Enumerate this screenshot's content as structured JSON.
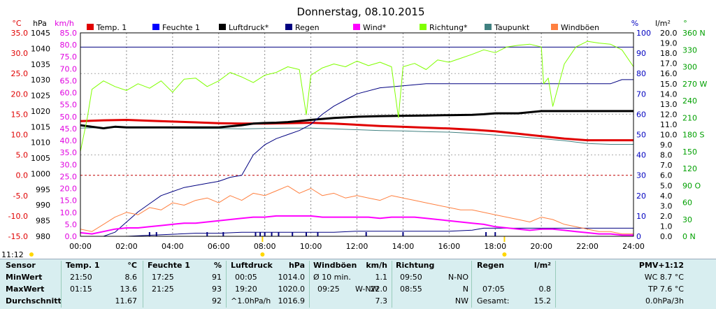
{
  "title": "Donnerstag, 08.10.2015",
  "clock": "11:12",
  "chart_data": {
    "type": "line",
    "x_ticks": [
      "00:00",
      "02:00",
      "04:00",
      "06:00",
      "08:00",
      "10:00",
      "12:00",
      "14:00",
      "16:00",
      "18:00",
      "20:00",
      "22:00",
      "24:00"
    ],
    "axes": {
      "temp": {
        "unit": "°C",
        "color": "#e00000",
        "range": [
          -15,
          35
        ],
        "ticks": [
          "35.0",
          "30.0",
          "25.0",
          "20.0",
          "15.0",
          "10.0",
          "5.0",
          "0.0",
          "-5.0",
          "-10.0",
          "-15.0"
        ]
      },
      "pressure": {
        "unit": "hPa",
        "color": "#000000",
        "range": [
          980,
          1045
        ],
        "ticks": [
          "1045",
          "1040",
          "1035",
          "1030",
          "1025",
          "1020",
          "1015",
          "1010",
          "1005",
          "1000",
          "995",
          "990",
          "985",
          "980"
        ]
      },
      "wind": {
        "unit": "km/h",
        "color": "#e000e0",
        "range": [
          0,
          85
        ],
        "ticks": [
          "85.0",
          "80.0",
          "75.0",
          "70.0",
          "65.0",
          "60.0",
          "55.0",
          "50.0",
          "45.0",
          "40.0",
          "35.0",
          "30.0",
          "25.0",
          "20.0",
          "15.0",
          "10.0",
          "5.0",
          "0.0"
        ]
      },
      "humidity": {
        "unit": "%",
        "color": "#0000c0",
        "range": [
          0,
          100
        ],
        "ticks": [
          "100",
          "90",
          "80",
          "70",
          "60",
          "50",
          "40",
          "30",
          "20",
          "10",
          "0"
        ]
      },
      "rain": {
        "unit": "l/m²",
        "color": "#000000",
        "range": [
          0,
          20
        ],
        "ticks": [
          "20.0",
          "19.0",
          "18.0",
          "17.0",
          "16.0",
          "15.0",
          "14.0",
          "13.0",
          "12.0",
          "11.0",
          "10.0",
          "9.0",
          "8.0",
          "7.0",
          "6.0",
          "5.0",
          "4.0",
          "3.0",
          "2.0",
          "1.0",
          "0.0"
        ]
      },
      "direction": {
        "unit": "°",
        "color": "#00a000",
        "range": [
          0,
          360
        ],
        "ticks": [
          "360 N",
          "330",
          "300",
          "270 W",
          "240",
          "210",
          "180 S",
          "150",
          "120",
          "90 O",
          "60",
          "30",
          "0 N"
        ]
      }
    },
    "legend": [
      {
        "name": "Temp. 1",
        "color": "#e00000"
      },
      {
        "name": "Feuchte 1",
        "color": "#0000ff"
      },
      {
        "name": "Luftdruck*",
        "color": "#000000"
      },
      {
        "name": "Regen",
        "color": "#000080"
      },
      {
        "name": "Wind*",
        "color": "#ff00ff"
      },
      {
        "name": "Richtung*",
        "color": "#80ff00"
      },
      {
        "name": "Taupunkt",
        "color": "#408080"
      },
      {
        "name": "Windböen",
        "color": "#ff8040"
      }
    ],
    "series": [
      {
        "name": "Temp. 1",
        "axis": "temp",
        "color": "#e00000",
        "width": 3,
        "x": [
          0,
          1,
          2,
          3,
          4,
          5,
          6,
          7,
          8,
          9,
          10,
          11,
          12,
          13,
          14,
          15,
          16,
          17,
          18,
          19,
          20,
          21,
          22,
          23,
          24
        ],
        "y": [
          13.3,
          13.5,
          13.6,
          13.4,
          13.2,
          13.0,
          12.8,
          12.7,
          12.7,
          12.8,
          12.9,
          12.7,
          12.4,
          12.1,
          11.9,
          11.7,
          11.5,
          11.2,
          10.8,
          10.2,
          9.6,
          9.0,
          8.6,
          8.6,
          8.6
        ]
      },
      {
        "name": "Taupunkt",
        "axis": "temp",
        "color": "#408080",
        "width": 1,
        "x": [
          0,
          1,
          2,
          3,
          4,
          5,
          6,
          7,
          8,
          9,
          10,
          11,
          12,
          13,
          14,
          15,
          16,
          17,
          18,
          19,
          20,
          21,
          22,
          23,
          24
        ],
        "y": [
          11.6,
          11.7,
          11.8,
          11.7,
          11.6,
          11.5,
          11.5,
          11.4,
          11.5,
          11.6,
          11.6,
          11.4,
          11.2,
          11.0,
          10.9,
          10.7,
          10.6,
          10.3,
          9.9,
          9.5,
          9.0,
          8.5,
          7.8,
          7.6,
          7.6
        ]
      },
      {
        "name": "Luftdruck*",
        "axis": "pressure",
        "color": "#000000",
        "width": 3,
        "x": [
          0,
          0.5,
          1,
          1.5,
          2,
          3,
          4,
          5,
          6,
          7,
          7.5,
          8,
          8.5,
          9,
          10,
          11,
          12,
          13,
          14,
          15,
          16,
          17,
          17.5,
          18,
          19,
          20,
          21,
          22,
          23,
          24
        ],
        "y": [
          1015.5,
          1015.0,
          1014.5,
          1015.0,
          1014.8,
          1014.8,
          1014.8,
          1014.8,
          1014.8,
          1015.5,
          1016.0,
          1016.2,
          1016.3,
          1016.5,
          1017.2,
          1017.8,
          1018.2,
          1018.4,
          1018.5,
          1018.6,
          1018.7,
          1018.8,
          1019.0,
          1019.3,
          1019.3,
          1020.0,
          1020.0,
          1020.0,
          1020.0,
          1020.0
        ]
      },
      {
        "name": "Feuchte 1",
        "axis": "humidity",
        "color": "#000080",
        "width": 1,
        "x": [
          0,
          1,
          1.5,
          2,
          2.5,
          3,
          3.5,
          4,
          4.5,
          5,
          5.5,
          6,
          6.5,
          7,
          7.5,
          8,
          8.5,
          9,
          9.5,
          10,
          10.5,
          11,
          11.5,
          12,
          13,
          14,
          15,
          16,
          17,
          18,
          19,
          20,
          21,
          22,
          23,
          23.5,
          24
        ],
        "y": [
          0,
          0,
          2,
          7,
          12,
          16,
          20,
          22,
          24,
          25,
          26,
          27,
          29,
          30,
          40,
          45,
          48,
          50,
          52,
          55,
          60,
          64,
          67,
          70,
          73,
          74,
          75,
          75,
          75,
          75,
          75,
          75,
          75,
          75,
          75,
          77,
          77
        ]
      },
      {
        "name": "Regen",
        "axis": "rain",
        "color": "#000080",
        "width": 1,
        "x": [
          0,
          1,
          2,
          3,
          4,
          5,
          6,
          7,
          8,
          9,
          10,
          11,
          12,
          13,
          14,
          15,
          16,
          17,
          17.5,
          18,
          19,
          20,
          21,
          22,
          23,
          24
        ],
        "y": [
          0,
          0,
          0,
          0.1,
          0.2,
          0.3,
          0.3,
          0.4,
          0.4,
          0.4,
          0.4,
          0.4,
          0.5,
          0.5,
          0.5,
          0.5,
          0.5,
          0.6,
          0.8,
          0.8,
          0.8,
          0.8,
          0.8,
          0.8,
          0.8,
          0.8
        ]
      },
      {
        "name": "Regen_total",
        "axis": "humidity",
        "color": "#000080",
        "width": 1,
        "x": [
          0,
          24
        ],
        "y": [
          93,
          93
        ]
      },
      {
        "name": "Richtung*",
        "axis": "direction",
        "color": "#80ff00",
        "width": 1,
        "x": [
          0,
          0.3,
          0.5,
          1,
          1.5,
          2,
          2.5,
          3,
          3.5,
          4,
          4.5,
          5,
          5.5,
          6,
          6.5,
          7,
          7.5,
          8,
          8.5,
          9,
          9.5,
          9.8,
          10,
          10.5,
          11,
          11.5,
          12,
          12.5,
          13,
          13.5,
          13.8,
          14,
          14.5,
          15,
          15.5,
          16,
          16.5,
          17,
          17.5,
          18,
          18.5,
          19,
          19.5,
          20,
          20.1,
          20.3,
          20.5,
          21,
          21.5,
          22,
          22.5,
          23,
          23.5,
          24
        ],
        "y": [
          150,
          210,
          260,
          275,
          265,
          258,
          270,
          262,
          275,
          255,
          278,
          280,
          265,
          275,
          290,
          282,
          272,
          285,
          290,
          300,
          295,
          215,
          285,
          298,
          305,
          300,
          310,
          302,
          308,
          300,
          210,
          300,
          306,
          295,
          312,
          308,
          315,
          322,
          330,
          325,
          335,
          338,
          340,
          335,
          270,
          280,
          230,
          305,
          335,
          345,
          342,
          340,
          330,
          300
        ]
      },
      {
        "name": "Wind*",
        "axis": "wind",
        "color": "#ff00ff",
        "width": 2,
        "x": [
          0,
          0.5,
          1,
          1.5,
          2,
          2.5,
          3,
          3.5,
          4,
          4.5,
          5,
          5.5,
          6,
          6.5,
          7,
          7.5,
          8,
          8.5,
          9,
          9.5,
          10,
          10.5,
          11,
          11.5,
          12,
          12.5,
          13,
          13.5,
          14,
          14.5,
          15,
          15.5,
          16,
          16.5,
          17,
          17.5,
          18,
          18.5,
          19,
          19.5,
          20,
          20.5,
          21,
          21.5,
          22,
          22.5,
          23,
          23.5,
          24
        ],
        "y": [
          1.5,
          1.0,
          2.0,
          3.0,
          3.5,
          3.5,
          4.0,
          4.5,
          5.0,
          5.5,
          5.5,
          6.0,
          6.5,
          7.0,
          7.5,
          8.0,
          8.0,
          8.5,
          8.5,
          8.5,
          8.5,
          8.0,
          8.0,
          8.0,
          8.0,
          8.0,
          7.5,
          8.0,
          8.0,
          8.0,
          7.5,
          7.0,
          6.5,
          6.0,
          5.5,
          5.0,
          4.0,
          3.5,
          3.0,
          2.5,
          3.0,
          3.0,
          2.5,
          2.0,
          1.5,
          1.0,
          1.0,
          0.5,
          0.5
        ]
      },
      {
        "name": "Windböen",
        "axis": "wind",
        "color": "#ff8040",
        "width": 1,
        "x": [
          0,
          0.5,
          1,
          1.5,
          2,
          2.5,
          3,
          3.5,
          4,
          4.5,
          5,
          5.5,
          6,
          6.5,
          7,
          7.5,
          8,
          8.5,
          9,
          9.5,
          10,
          10.5,
          11,
          11.5,
          12,
          12.5,
          13,
          13.5,
          14,
          14.5,
          15,
          15.5,
          16,
          16.5,
          17,
          17.5,
          18,
          18.5,
          19,
          19.5,
          20,
          20.5,
          21,
          21.5,
          22,
          22.5,
          23,
          23.5,
          24
        ],
        "y": [
          3,
          2,
          5,
          8,
          10,
          9,
          12,
          11,
          14,
          13,
          15,
          16,
          14,
          17,
          15,
          18,
          17,
          19,
          21,
          18,
          20,
          17,
          18,
          16,
          17,
          16,
          15,
          17,
          16,
          15,
          14,
          13,
          12,
          11,
          11,
          10,
          9,
          8,
          7,
          6,
          8,
          7,
          5,
          4,
          3,
          2,
          2,
          1,
          1
        ]
      }
    ]
  },
  "stats": {
    "sensor": {
      "header": "Sensor",
      "rows": [
        "MinWert",
        "MaxWert",
        "Durchschnitt"
      ]
    },
    "temp": {
      "header": "Temp. 1",
      "unit": "°C",
      "t": [
        "21:50",
        "01:15",
        ""
      ],
      "v": [
        "8.6",
        "13.6",
        "11.67"
      ]
    },
    "feuchte": {
      "header": "Feuchte 1",
      "unit": "%",
      "t": [
        "17:25",
        "21:25",
        ""
      ],
      "v": [
        "91",
        "93",
        "92"
      ]
    },
    "druck": {
      "header": "Luftdruck",
      "unit": "hPa",
      "t": [
        "00:05",
        "19:20",
        "^1.0hPa/h"
      ],
      "v": [
        "1014.0",
        "1020.0",
        "1016.9"
      ]
    },
    "boeen": {
      "header": "Windböen",
      "unit": "km/h",
      "t": [
        "Ø 10 min.",
        "09:25",
        ""
      ],
      "m": [
        "",
        "W-NW",
        ""
      ],
      "v": [
        "1.1",
        "22.0",
        "7.3"
      ]
    },
    "richtung": {
      "header": "Richtung",
      "t": [
        "09:50",
        "08:55",
        ""
      ],
      "v": [
        "N-NO",
        "N",
        "NW"
      ]
    },
    "regen": {
      "header": "Regen",
      "unit": "l/m²",
      "t": [
        "",
        "07:05",
        "Gesamt:"
      ],
      "v": [
        "",
        "0.8",
        "15.2"
      ]
    },
    "pmv": {
      "header": "PMV+1:12",
      "rows": [
        "WC 8.7 °C",
        "TP 7.6 °C",
        "0.0hPa/3h"
      ]
    }
  }
}
